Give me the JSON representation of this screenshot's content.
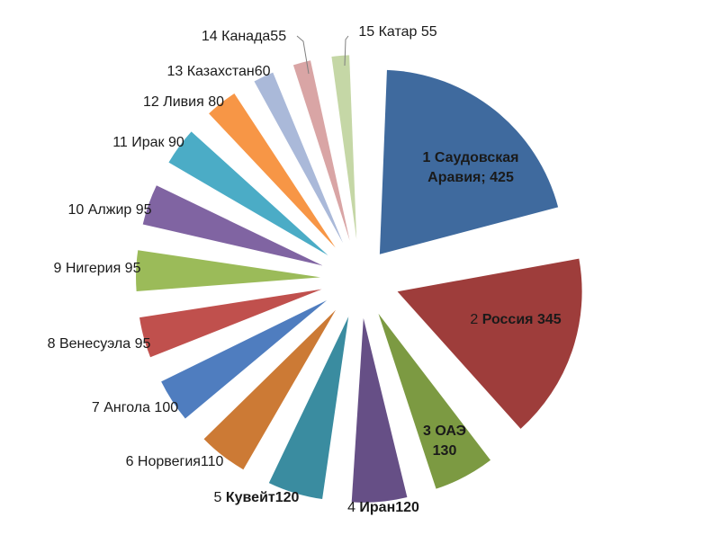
{
  "chart_data": {
    "type": "pie",
    "title": "",
    "unit_note": "",
    "slices": [
      {
        "rank": "1",
        "name": "Саудовская Аравия",
        "value": 425,
        "color": "#3F6A9E",
        "label": "1 Саудовская Аравия; 425",
        "label_lines": [
          "1 Саудовская",
          "Аравия; 425"
        ],
        "label_pos": "inside",
        "bold": true
      },
      {
        "rank": "2",
        "name": "Россия",
        "value": 345,
        "color": "#9E3D3B",
        "label": "2 Россия 345",
        "label_pos": "inside",
        "bold_name": true
      },
      {
        "rank": "3",
        "name": "ОАЭ",
        "value": 130,
        "color": "#7C9A42",
        "label": "3 ОАЭ 130",
        "label_lines": [
          "3 ОАЭ",
          "130"
        ],
        "label_pos": "inside",
        "bold": true
      },
      {
        "rank": "4",
        "name": "Иран",
        "value": 120,
        "color": "#664F86",
        "label": "4 Иран120",
        "label_pos": "outside",
        "bold_name": true
      },
      {
        "rank": "5",
        "name": "Кувейт",
        "value": 120,
        "color": "#3A8CA0",
        "label": "5 Кувейт120",
        "label_pos": "outside",
        "bold_name": true
      },
      {
        "rank": "6",
        "name": "Норвегия",
        "value": 110,
        "color": "#CC7A35",
        "label": "6 Норвегия110",
        "label_pos": "outside"
      },
      {
        "rank": "7",
        "name": "Ангола",
        "value": 100,
        "color": "#4F7DBF",
        "label": "7 Ангола 100",
        "label_pos": "outside"
      },
      {
        "rank": "8",
        "name": "Венесуэла",
        "value": 95,
        "color": "#C0504D",
        "label": "8 Венесуэла 95",
        "label_pos": "outside"
      },
      {
        "rank": "9",
        "name": "Нигерия",
        "value": 95,
        "color": "#9BBB59",
        "label": "9 Нигерия 95",
        "label_pos": "outside"
      },
      {
        "rank": "10",
        "name": "Алжир",
        "value": 95,
        "color": "#8064A2",
        "label": "10 Алжир 95",
        "label_pos": "outside"
      },
      {
        "rank": "11",
        "name": "Ирак",
        "value": 90,
        "color": "#4BACC6",
        "label": "11 Ирак 90",
        "label_pos": "outside"
      },
      {
        "rank": "12",
        "name": "Ливия",
        "value": 80,
        "color": "#F79646",
        "label": "12 Ливия 80",
        "label_pos": "outside"
      },
      {
        "rank": "13",
        "name": "Казахстан",
        "value": 60,
        "color": "#AAB9D9",
        "label": "13 Казахстан60",
        "label_pos": "outside"
      },
      {
        "rank": "14",
        "name": "Канада",
        "value": 55,
        "color": "#D9A5A5",
        "label": "14 Канада55",
        "label_pos": "outside",
        "leader": true
      },
      {
        "rank": "15",
        "name": "Катар",
        "value": 55,
        "color": "#C5D7A6",
        "label": "15 Катар 55",
        "label_pos": "outside",
        "leader": true
      }
    ],
    "legend": "none"
  }
}
